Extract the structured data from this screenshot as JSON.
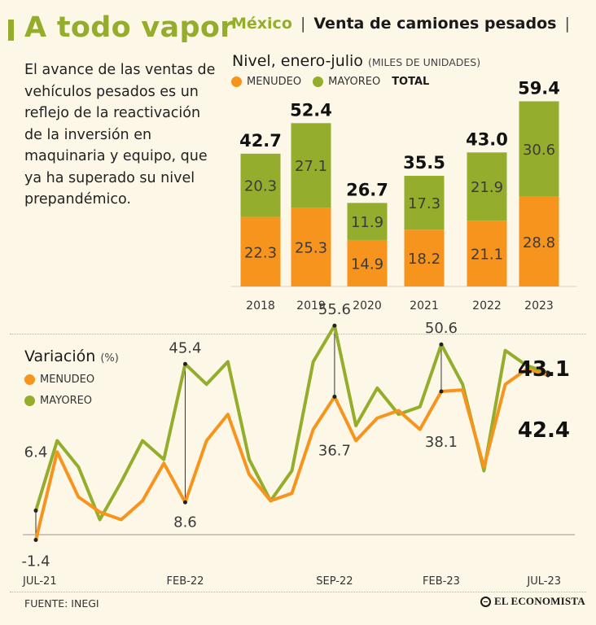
{
  "title": "A todo vapor",
  "intro": "El avance de las ventas de vehículos pesados es un reflejo de la reactivación de la inversión en maquinaria y equipo, que ya ha superado su nivel prepandémico.",
  "header": {
    "country": "México",
    "topic": "Venta de camiones pesados",
    "sep": "|"
  },
  "colors": {
    "menudeo": "#f7941d",
    "mayoreo": "#94ad2c",
    "background": "#fdf7e8"
  },
  "source": "FUENTE: INEGI",
  "logo": "EL ECONOMISTA",
  "chart_data": [
    {
      "type": "bar",
      "stacked": true,
      "title": "Nivel, enero-julio",
      "units": "(MILES DE UNIDADES)",
      "legend": [
        "MENUDEO",
        "MAYOREO",
        "TOTAL"
      ],
      "categories": [
        "2018",
        "2019",
        "2020",
        "2021",
        "2022",
        "2023"
      ],
      "series": [
        {
          "name": "MENUDEO",
          "values": [
            22.3,
            25.3,
            14.9,
            18.2,
            21.1,
            28.8
          ]
        },
        {
          "name": "MAYOREO",
          "values": [
            20.3,
            27.1,
            11.9,
            17.3,
            21.9,
            30.6
          ]
        }
      ],
      "totals": [
        "42.7",
        "52.4",
        "26.7",
        "35.5",
        "43.0",
        "59.4"
      ],
      "ylim": [
        0,
        62
      ]
    },
    {
      "type": "line",
      "title": "Variación",
      "units": "(%)",
      "legend": [
        "MENUDEO",
        "MAYOREO"
      ],
      "x_tick_labels": [
        "JUL-21",
        "FEB-22",
        "SEP-22",
        "FEB-23",
        "JUL-23"
      ],
      "x_tick_index": [
        0,
        7,
        14,
        19,
        24
      ],
      "ylim": [
        -5,
        60
      ],
      "series": [
        {
          "name": "MENUDEO",
          "values": [
            -1.4,
            22,
            10,
            6,
            4,
            9,
            19,
            8.6,
            25,
            32,
            16,
            9,
            11,
            28,
            36.7,
            25,
            31,
            33,
            28,
            38.1,
            38.5,
            18,
            40,
            44,
            42.4
          ]
        },
        {
          "name": "MAYOREO",
          "values": [
            6.4,
            25,
            18,
            4,
            14,
            25,
            20,
            45.4,
            40,
            46,
            20,
            9,
            17,
            46,
            55.6,
            29,
            39,
            32,
            34,
            50.6,
            40,
            17,
            49,
            45,
            43.1
          ]
        }
      ],
      "annotations": [
        {
          "series": "MAYOREO",
          "index": 0,
          "label": "6.4"
        },
        {
          "series": "MENUDEO",
          "index": 0,
          "label": "-1.4"
        },
        {
          "series": "MAYOREO",
          "index": 7,
          "label": "45.4"
        },
        {
          "series": "MENUDEO",
          "index": 7,
          "label": "8.6"
        },
        {
          "series": "MAYOREO",
          "index": 14,
          "label": "55.6"
        },
        {
          "series": "MENUDEO",
          "index": 14,
          "label": "36.7"
        },
        {
          "series": "MAYOREO",
          "index": 19,
          "label": "50.6"
        },
        {
          "series": "MENUDEO",
          "index": 19,
          "label": "38.1"
        }
      ],
      "end_labels": {
        "top": "43.1",
        "bottom": "42.4"
      }
    }
  ]
}
